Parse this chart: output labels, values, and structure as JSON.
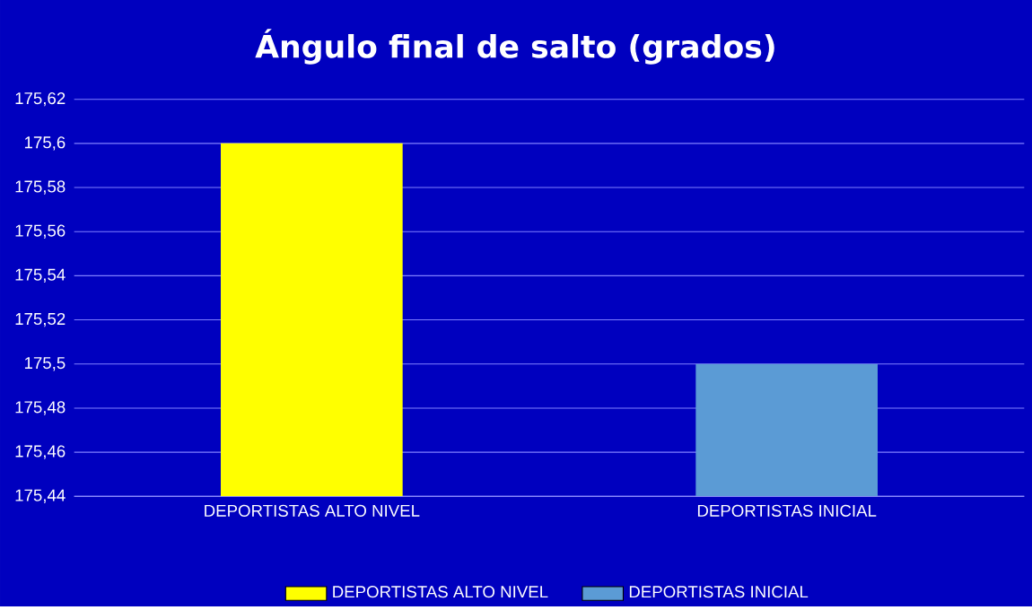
{
  "chart_data": {
    "type": "bar",
    "title": "Ángulo final de salto (grados)",
    "categories": [
      "DEPORTISTAS ALTO NIVEL",
      "DEPORTISTAS INICIAL"
    ],
    "series": [
      {
        "name": "DEPORTISTAS ALTO NIVEL",
        "color": "#ffff00",
        "values": [
          175.6,
          null
        ]
      },
      {
        "name": "DEPORTISTAS INICIAL",
        "color": "#5b9bd5",
        "values": [
          null,
          175.5
        ]
      }
    ],
    "ylim": [
      175.44,
      175.62
    ],
    "yticks": [
      {
        "value": 175.44,
        "label": "175,44"
      },
      {
        "value": 175.46,
        "label": "175,46"
      },
      {
        "value": 175.48,
        "label": "175,48"
      },
      {
        "value": 175.5,
        "label": "175,5"
      },
      {
        "value": 175.52,
        "label": "175,52"
      },
      {
        "value": 175.54,
        "label": "175,54"
      },
      {
        "value": 175.56,
        "label": "175,56"
      },
      {
        "value": 175.58,
        "label": "175,58"
      },
      {
        "value": 175.6,
        "label": "175,6"
      },
      {
        "value": 175.62,
        "label": "175,62"
      }
    ],
    "grid": "y",
    "legend": "bottom"
  }
}
